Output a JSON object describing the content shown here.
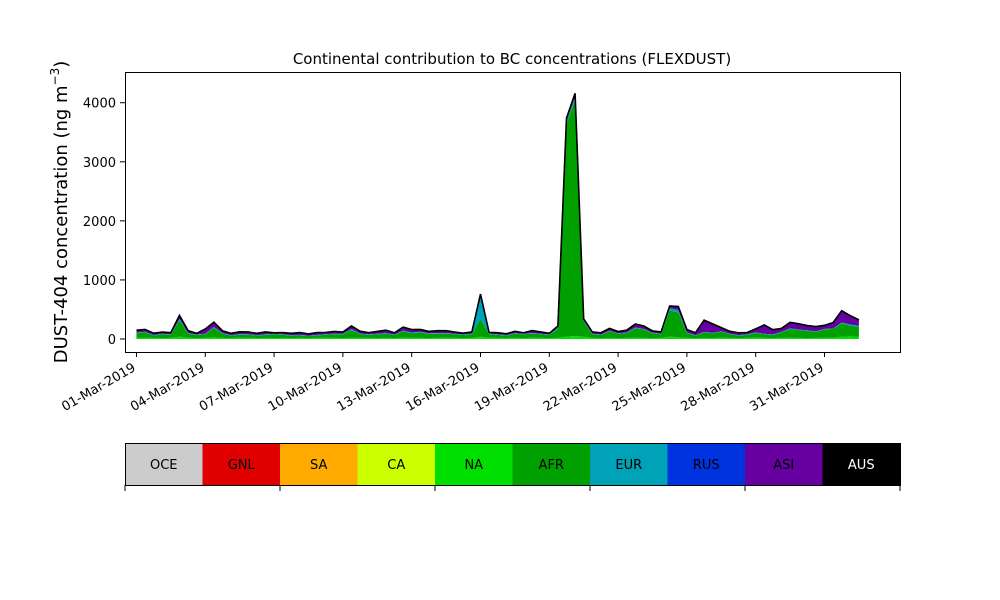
{
  "chart_data": {
    "type": "area",
    "title": "Continental contribution to BC concentrations (FLEXDUST)",
    "ylabel": "DUST-404 concentration (ng m",
    "ylabel_superscript": "−3",
    "ylabel_suffix": ")",
    "xlabel": "",
    "ylim": [
      -220,
      4520
    ],
    "xlim": [
      "2019-02-28T12:00",
      "2019-04-03T07:00"
    ],
    "yticks": [
      0,
      1000,
      2000,
      3000,
      4000
    ],
    "xticks": [
      "01-Mar-2019",
      "04-Mar-2019",
      "07-Mar-2019",
      "10-Mar-2019",
      "13-Mar-2019",
      "16-Mar-2019",
      "19-Mar-2019",
      "22-Mar-2019",
      "25-Mar-2019",
      "28-Mar-2019",
      "31-Mar-2019"
    ],
    "grid": false,
    "stacked": true,
    "x": [
      "2019-03-01T00:00",
      "2019-03-01T09:00",
      "2019-03-01T18:00",
      "2019-03-02T03:00",
      "2019-03-02T12:00",
      "2019-03-02T21:00",
      "2019-03-03T06:00",
      "2019-03-03T15:00",
      "2019-03-04T00:00",
      "2019-03-04T09:00",
      "2019-03-04T18:00",
      "2019-03-05T03:00",
      "2019-03-05T12:00",
      "2019-03-05T21:00",
      "2019-03-06T06:00",
      "2019-03-06T15:00",
      "2019-03-07T00:00",
      "2019-03-07T09:00",
      "2019-03-07T18:00",
      "2019-03-08T03:00",
      "2019-03-08T12:00",
      "2019-03-08T21:00",
      "2019-03-09T06:00",
      "2019-03-09T15:00",
      "2019-03-10T00:00",
      "2019-03-10T09:00",
      "2019-03-10T18:00",
      "2019-03-11T03:00",
      "2019-03-11T12:00",
      "2019-03-11T21:00",
      "2019-03-12T06:00",
      "2019-03-12T15:00",
      "2019-03-13T00:00",
      "2019-03-13T09:00",
      "2019-03-13T18:00",
      "2019-03-14T03:00",
      "2019-03-14T12:00",
      "2019-03-14T21:00",
      "2019-03-15T06:00",
      "2019-03-15T15:00",
      "2019-03-16T00:00",
      "2019-03-16T09:00",
      "2019-03-16T18:00",
      "2019-03-17T03:00",
      "2019-03-17T12:00",
      "2019-03-17T21:00",
      "2019-03-18T06:00",
      "2019-03-18T15:00",
      "2019-03-19T00:00",
      "2019-03-19T09:00",
      "2019-03-19T18:00",
      "2019-03-20T03:00",
      "2019-03-20T12:00",
      "2019-03-20T21:00",
      "2019-03-21T06:00",
      "2019-03-21T15:00",
      "2019-03-22T00:00",
      "2019-03-22T09:00",
      "2019-03-22T18:00",
      "2019-03-23T03:00",
      "2019-03-23T12:00",
      "2019-03-23T21:00",
      "2019-03-24T06:00",
      "2019-03-24T15:00",
      "2019-03-25T00:00",
      "2019-03-25T09:00",
      "2019-03-25T18:00",
      "2019-03-26T03:00",
      "2019-03-26T12:00",
      "2019-03-26T21:00",
      "2019-03-27T06:00",
      "2019-03-27T15:00",
      "2019-03-28T00:00",
      "2019-03-28T09:00",
      "2019-03-28T18:00",
      "2019-03-29T03:00",
      "2019-03-29T12:00",
      "2019-03-29T21:00",
      "2019-03-30T06:00",
      "2019-03-30T15:00",
      "2019-03-31T00:00",
      "2019-03-31T09:00",
      "2019-03-31T18:00",
      "2019-04-01T03:00",
      "2019-04-01T12:00"
    ],
    "series": [
      {
        "name": "NA",
        "color": "#00e000",
        "values": [
          20,
          22,
          20,
          18,
          20,
          40,
          22,
          18,
          20,
          30,
          20,
          18,
          22,
          20,
          18,
          20,
          18,
          20,
          18,
          20,
          18,
          20,
          22,
          20,
          18,
          20,
          22,
          20,
          18,
          20,
          18,
          22,
          20,
          20,
          18,
          20,
          22,
          20,
          18,
          20,
          40,
          22,
          20,
          18,
          20,
          18,
          22,
          20,
          18,
          20,
          40,
          50,
          40,
          20,
          18,
          20,
          18,
          20,
          22,
          20,
          18,
          20,
          40,
          30,
          20,
          18,
          20,
          18,
          22,
          20,
          18,
          20,
          22,
          20,
          18,
          20,
          22,
          20,
          18,
          20,
          22,
          20,
          40,
          45,
          40
        ]
      },
      {
        "name": "AFR",
        "color": "#00a000",
        "values": [
          80,
          90,
          40,
          60,
          50,
          280,
          70,
          50,
          60,
          160,
          70,
          40,
          50,
          50,
          40,
          50,
          60,
          50,
          40,
          40,
          30,
          40,
          50,
          60,
          60,
          130,
          60,
          50,
          60,
          70,
          50,
          110,
          80,
          90,
          70,
          70,
          70,
          60,
          50,
          60,
          300,
          60,
          50,
          40,
          70,
          60,
          70,
          60,
          50,
          150,
          3600,
          4000,
          250,
          60,
          50,
          110,
          70,
          80,
          160,
          140,
          80,
          60,
          440,
          420,
          80,
          40,
          90,
          80,
          100,
          60,
          40,
          50,
          80,
          60,
          50,
          90,
          150,
          130,
          120,
          100,
          140,
          150,
          220,
          180,
          170
        ]
      },
      {
        "name": "EUR",
        "color": "#00a2b8",
        "values": [
          10,
          10,
          8,
          10,
          8,
          20,
          10,
          8,
          10,
          15,
          10,
          8,
          10,
          10,
          8,
          10,
          8,
          10,
          8,
          10,
          8,
          10,
          10,
          8,
          10,
          20,
          10,
          8,
          10,
          10,
          8,
          10,
          10,
          12,
          10,
          10,
          10,
          8,
          10,
          10,
          400,
          10,
          8,
          10,
          10,
          8,
          10,
          10,
          8,
          20,
          40,
          50,
          20,
          10,
          8,
          10,
          8,
          10,
          12,
          10,
          8,
          10,
          40,
          40,
          10,
          8,
          10,
          8,
          10,
          10,
          8,
          10,
          10,
          8,
          10,
          10,
          10,
          8,
          10,
          10,
          10,
          8,
          20,
          20,
          15
        ]
      },
      {
        "name": "ASI",
        "color": "#6600a0",
        "values": [
          40,
          40,
          30,
          30,
          30,
          60,
          40,
          20,
          80,
          80,
          40,
          30,
          40,
          40,
          30,
          40,
          20,
          30,
          30,
          40,
          30,
          40,
          30,
          40,
          30,
          50,
          40,
          30,
          40,
          50,
          30,
          60,
          50,
          40,
          30,
          40,
          40,
          30,
          20,
          30,
          20,
          20,
          30,
          20,
          30,
          20,
          40,
          30,
          20,
          30,
          60,
          60,
          30,
          30,
          30,
          40,
          30,
          40,
          60,
          50,
          30,
          30,
          40,
          60,
          50,
          40,
          200,
          150,
          60,
          40,
          40,
          30,
          60,
          150,
          80,
          60,
          100,
          100,
          80,
          80,
          60,
          100,
          200,
          150,
          100
        ]
      }
    ]
  },
  "legend": {
    "items": [
      {
        "label": "OCE",
        "color": "#cccccc"
      },
      {
        "label": "GNL",
        "color": "#e00000"
      },
      {
        "label": "SA",
        "color": "#ffaa00"
      },
      {
        "label": "CA",
        "color": "#ccff00"
      },
      {
        "label": "NA",
        "color": "#00e000"
      },
      {
        "label": "AFR",
        "color": "#00a000"
      },
      {
        "label": "EUR",
        "color": "#00a2b8"
      },
      {
        "label": "RUS",
        "color": "#0033e0"
      },
      {
        "label": "ASI",
        "color": "#6600a0"
      },
      {
        "label": "AUS",
        "color": "#000000"
      }
    ]
  }
}
